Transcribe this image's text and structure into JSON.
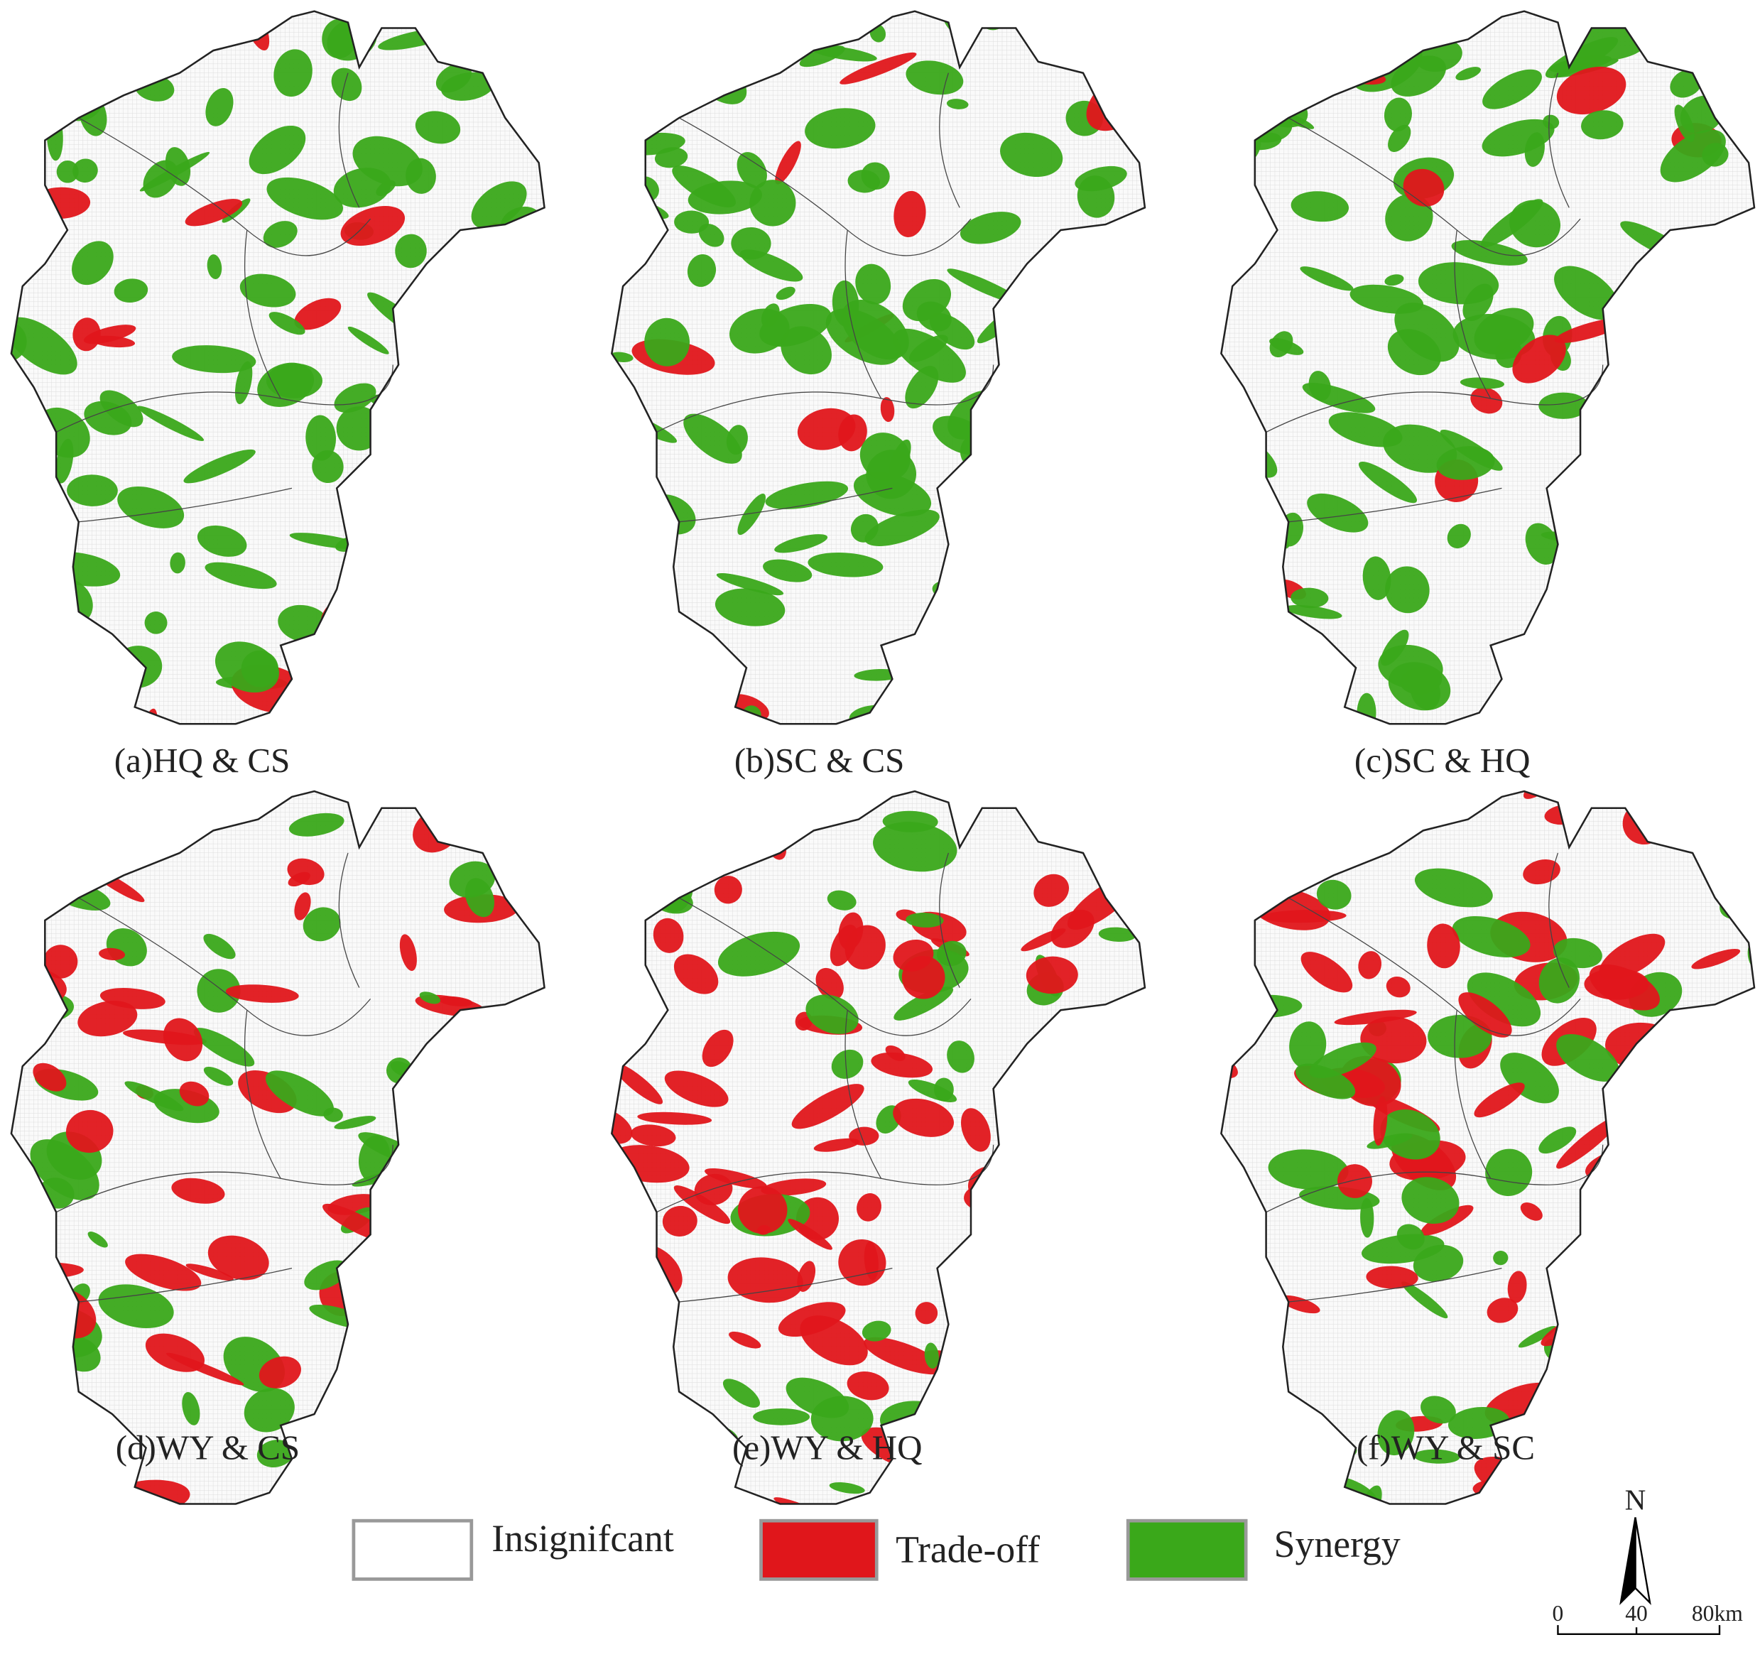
{
  "panels": [
    {
      "label": "(a)HQ & CS"
    },
    {
      "label": "(b)SC & CS"
    },
    {
      "label": "(c)SC & HQ"
    },
    {
      "label": "(d)WY & CS"
    },
    {
      "label": "(e)WY & HQ"
    },
    {
      "label": "(f)WY & SC"
    }
  ],
  "legend": [
    {
      "label": "Insignifcant"
    },
    {
      "label": "Trade-off"
    },
    {
      "label": "Synergy"
    }
  ],
  "north_arrow": "N",
  "scale_bar": {
    "labels": [
      "0",
      "40",
      "80km"
    ]
  }
}
